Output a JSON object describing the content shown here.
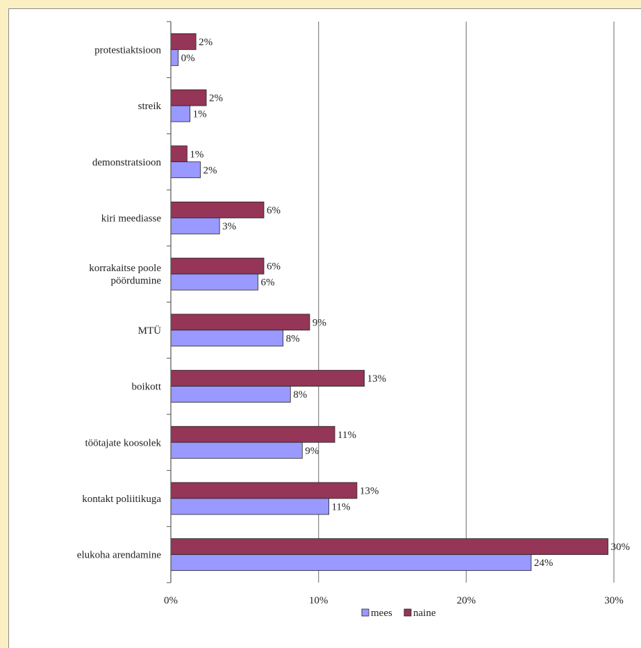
{
  "chart_data": {
    "type": "bar",
    "orientation": "horizontal",
    "categories": [
      [
        "protestiaktsioon"
      ],
      [
        "streik"
      ],
      [
        "demonstratsioon"
      ],
      [
        "kiri meediasse"
      ],
      [
        "korrakaitse poole",
        "pöördumine"
      ],
      [
        "MTÜ"
      ],
      [
        "boikott"
      ],
      [
        "töötajate koosolek"
      ],
      [
        "kontakt poliitikuga"
      ],
      [
        "elukoha arendamine"
      ]
    ],
    "series": [
      {
        "name": "naine",
        "color": "#953557",
        "values": [
          1.7,
          2.4,
          1.1,
          6.3,
          6.3,
          9.4,
          13.1,
          11.1,
          12.6,
          29.6
        ],
        "labels": [
          "2%",
          "2%",
          "1%",
          "6%",
          "6%",
          "9%",
          "13%",
          "11%",
          "13%",
          "30%"
        ]
      },
      {
        "name": "mees",
        "color": "#9999ff",
        "values": [
          0.5,
          1.3,
          2.0,
          3.3,
          5.9,
          7.6,
          8.1,
          8.9,
          10.7,
          24.4
        ],
        "labels": [
          "0%",
          "1%",
          "2%",
          "3%",
          "6%",
          "8%",
          "8%",
          "9%",
          "11%",
          "24%"
        ]
      }
    ],
    "xlim": [
      0,
      30
    ],
    "xticks": [
      0,
      10,
      20,
      30
    ],
    "xtick_labels": [
      "0%",
      "10%",
      "20%",
      "30%"
    ],
    "grid": true,
    "legend": {
      "position": "bottom",
      "order": [
        "mees",
        "naine"
      ]
    }
  }
}
